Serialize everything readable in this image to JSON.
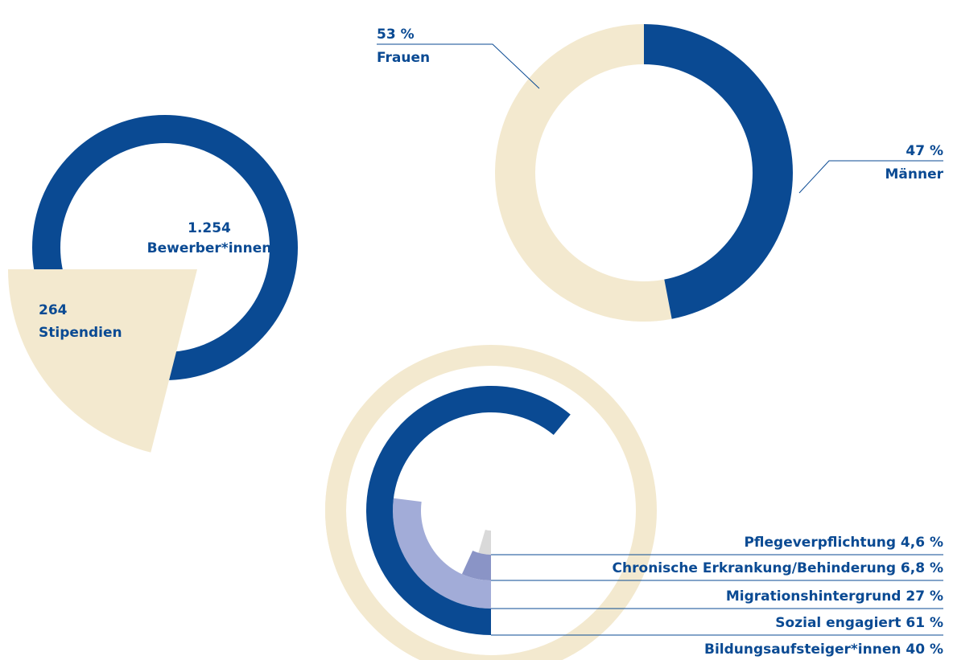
{
  "chart_data": [
    {
      "type": "ring_wedge",
      "categories": [
        "Bewerber*innen",
        "Stipendien"
      ],
      "values": [
        1254,
        264
      ],
      "value_labels": [
        "1.254",
        "264"
      ],
      "colors": [
        "#0a4a93",
        "#f3e9cf"
      ]
    },
    {
      "type": "donut",
      "categories": [
        "Frauen",
        "Männer"
      ],
      "values": [
        53,
        47
      ],
      "value_labels": [
        "53 %",
        "47 %"
      ],
      "colors": [
        "#f3e9cf",
        "#0a4a93"
      ]
    },
    {
      "type": "radial_bar",
      "categories": [
        "Pflegeverpflichtung",
        "Chronische Erkrankung/Behinderung",
        "Migrationshintergrund",
        "Sozial engagiert",
        "Bildungsaufsteiger*innen"
      ],
      "values": [
        4.6,
        6.8,
        27,
        61,
        40
      ],
      "value_labels": [
        "4,6 %",
        "6,8 %",
        "27 %",
        "61 %",
        "40 %"
      ],
      "colors": [
        "#d9d9d9",
        "#8a94c6",
        "#a2acd8",
        "#0a4a93",
        "#f3e9cf"
      ]
    }
  ]
}
